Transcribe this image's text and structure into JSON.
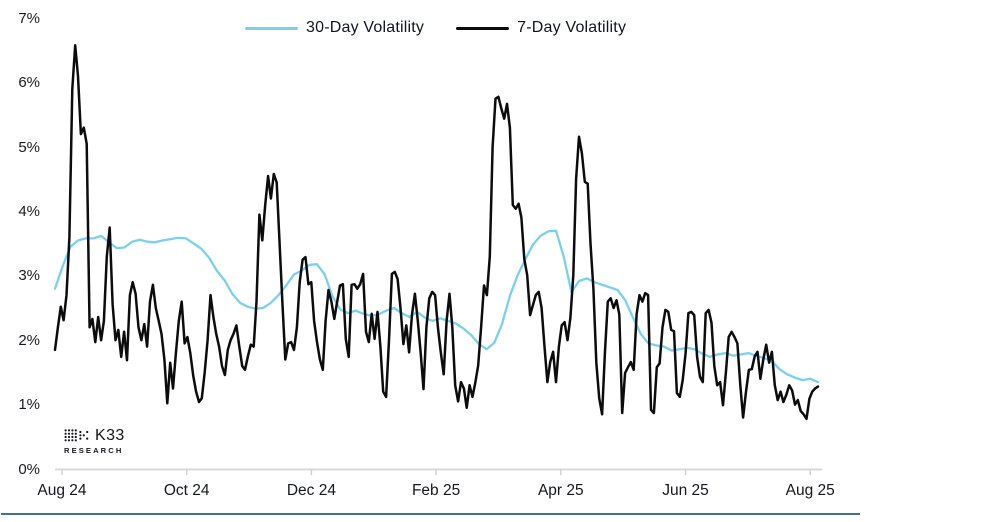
{
  "chart_data": {
    "type": "line",
    "title": "",
    "grid": false,
    "legend_position": "top-center",
    "axis_color": "#d9d9d9",
    "tick_color": "#cfcfcf",
    "label_color": "#15171c",
    "x_axis": {
      "tick_labels": [
        "Aug 24",
        "Oct 24",
        "Dec 24",
        "Feb 25",
        "Apr 25",
        "Jun 25",
        "Aug 25"
      ]
    },
    "y_axis": {
      "tick_labels": [
        "0%",
        "1%",
        "2%",
        "3%",
        "4%",
        "5%",
        "6%",
        "7%"
      ],
      "min": 0,
      "max": 7,
      "unit": "percent"
    },
    "series": [
      {
        "name": "30-Day Volatility",
        "color": "#7bd0f0",
        "line_width": 2.3,
        "values": [
          2.8,
          3.15,
          3.45,
          3.55,
          3.58,
          3.58,
          3.62,
          3.52,
          3.43,
          3.44,
          3.53,
          3.56,
          3.53,
          3.52,
          3.55,
          3.57,
          3.59,
          3.58,
          3.5,
          3.42,
          3.28,
          3.08,
          2.93,
          2.72,
          2.58,
          2.52,
          2.49,
          2.5,
          2.58,
          2.7,
          2.85,
          3.02,
          3.08,
          3.17,
          3.18,
          3.02,
          2.68,
          2.48,
          2.42,
          2.46,
          2.41,
          2.38,
          2.4,
          2.46,
          2.5,
          2.42,
          2.36,
          2.44,
          2.35,
          2.3,
          2.34,
          2.3,
          2.26,
          2.18,
          2.08,
          1.94,
          1.86,
          1.96,
          2.25,
          2.68,
          3.0,
          3.25,
          3.48,
          3.62,
          3.69,
          3.7,
          3.3,
          2.75,
          2.92,
          2.96,
          2.9,
          2.86,
          2.82,
          2.78,
          2.62,
          2.35,
          2.1,
          1.95,
          1.92,
          1.9,
          1.84,
          1.86,
          1.88,
          1.86,
          1.79,
          1.74,
          1.78,
          1.8,
          1.76,
          1.78,
          1.8,
          1.76,
          1.72,
          1.68,
          1.55,
          1.47,
          1.42,
          1.38,
          1.4,
          1.35
        ]
      },
      {
        "name": "7-Day Volatility",
        "color": "#0c0c0c",
        "line_width": 2.5,
        "values": [
          1.85,
          2.2,
          2.52,
          2.31,
          2.7,
          3.6,
          5.9,
          6.58,
          6.1,
          5.2,
          5.3,
          5.05,
          2.2,
          2.33,
          1.97,
          2.36,
          2.0,
          2.3,
          3.3,
          3.75,
          2.56,
          2.0,
          2.16,
          1.74,
          2.13,
          1.69,
          2.7,
          2.9,
          2.72,
          2.2,
          2.0,
          2.25,
          1.9,
          2.6,
          2.86,
          2.5,
          2.3,
          2.1,
          1.7,
          1.02,
          1.65,
          1.25,
          1.8,
          2.3,
          2.6,
          1.95,
          2.05,
          1.8,
          1.45,
          1.2,
          1.04,
          1.1,
          1.5,
          2.0,
          2.7,
          2.36,
          2.1,
          1.9,
          1.6,
          1.46,
          1.85,
          2.0,
          2.1,
          2.23,
          1.9,
          1.6,
          1.54,
          1.75,
          1.93,
          1.9,
          2.6,
          3.95,
          3.55,
          4.1,
          4.55,
          4.2,
          4.58,
          4.45,
          3.5,
          2.55,
          1.7,
          1.95,
          1.97,
          1.85,
          2.2,
          2.9,
          3.25,
          3.29,
          2.87,
          2.9,
          2.3,
          1.97,
          1.7,
          1.54,
          2.3,
          2.78,
          2.6,
          2.33,
          2.6,
          2.85,
          2.87,
          2.02,
          1.74,
          2.86,
          2.87,
          2.8,
          2.87,
          3.03,
          2.13,
          1.97,
          2.41,
          2.02,
          2.44,
          1.9,
          1.2,
          1.12,
          2.0,
          3.03,
          3.06,
          2.95,
          2.5,
          1.94,
          2.23,
          1.81,
          2.4,
          2.72,
          2.3,
          1.8,
          1.24,
          2.2,
          2.65,
          2.75,
          2.7,
          2.2,
          1.81,
          1.47,
          2.3,
          2.72,
          2.2,
          1.3,
          1.05,
          1.35,
          1.25,
          0.95,
          1.3,
          1.12,
          1.35,
          1.61,
          2.2,
          2.85,
          2.7,
          3.3,
          5.0,
          5.75,
          5.78,
          5.6,
          5.44,
          5.67,
          5.3,
          4.1,
          4.04,
          4.12,
          3.9,
          3.26,
          3.01,
          2.39,
          2.55,
          2.7,
          2.75,
          2.5,
          1.9,
          1.35,
          1.66,
          1.82,
          1.35,
          1.9,
          2.23,
          2.28,
          2.0,
          2.35,
          3.01,
          4.5,
          5.16,
          4.9,
          4.46,
          4.43,
          3.5,
          2.8,
          1.66,
          1.1,
          0.85,
          1.8,
          2.6,
          2.65,
          2.5,
          2.62,
          2.4,
          0.87,
          1.49,
          1.58,
          1.66,
          1.54,
          2.4,
          2.7,
          2.6,
          2.73,
          2.7,
          0.92,
          0.87,
          1.58,
          1.64,
          2.2,
          2.47,
          2.44,
          2.16,
          2.14,
          1.18,
          1.12,
          1.38,
          1.8,
          2.42,
          2.44,
          2.39,
          1.74,
          1.43,
          1.35,
          2.42,
          2.47,
          2.27,
          1.6,
          1.3,
          1.35,
          0.99,
          1.5,
          2.05,
          2.13,
          2.05,
          1.95,
          1.3,
          0.8,
          1.2,
          1.54,
          1.55,
          1.75,
          1.82,
          1.4,
          1.7,
          1.93,
          1.65,
          1.82,
          1.3,
          1.07,
          1.2,
          1.04,
          1.15,
          1.3,
          1.22,
          1.0,
          1.07,
          0.9,
          0.85,
          0.78,
          1.09,
          1.2,
          1.25,
          1.28
        ]
      }
    ]
  },
  "branding": {
    "logo_text": "K33",
    "logo_subtext": "RESEARCH"
  },
  "footer": {
    "divider_color": "#42709d"
  }
}
